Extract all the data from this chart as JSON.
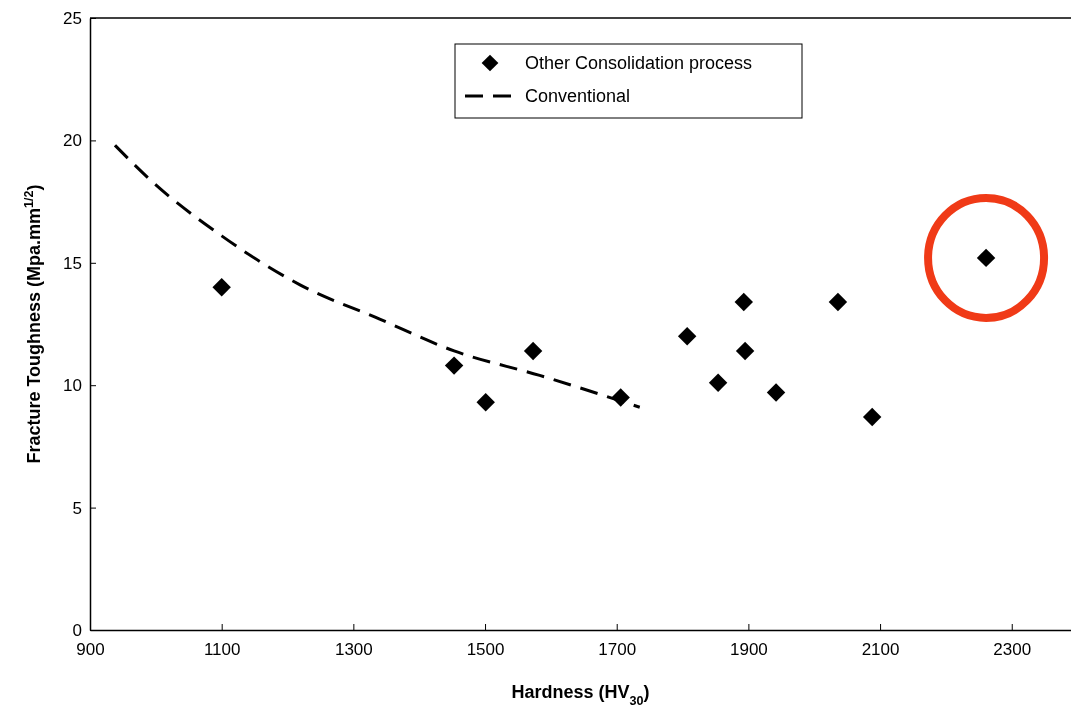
{
  "chart_data": {
    "type": "scatter",
    "xlabel": "Hardness (HV$_{30}$)",
    "ylabel": "Fracture Toughness (Mpa.mm$^{1/2}$)",
    "xlim": [
      900,
      2390
    ],
    "xticks": [
      900,
      1100,
      1300,
      1500,
      1700,
      1900,
      2100,
      2300
    ],
    "ylim": [
      0,
      25
    ],
    "yticks": [
      0,
      5,
      10,
      15,
      20,
      25
    ],
    "grid": false,
    "legend": "top",
    "series": [
      {
        "name": "Other Consolidation process",
        "marker": "diamond",
        "color": "#000000",
        "x": [
          1100,
          1453,
          1501,
          1573,
          1706,
          1807,
          1854,
          1893,
          1895,
          1942,
          2036,
          2088,
          2261
        ],
        "values": [
          14.0,
          10.8,
          9.3,
          11.4,
          9.5,
          12.0,
          10.1,
          13.4,
          11.4,
          9.7,
          13.4,
          8.7,
          15.2
        ]
      },
      {
        "name": "Conventional",
        "type": "line",
        "line_style": "dashed",
        "marker": "none",
        "color": "#000000",
        "x": [
          938,
          991,
          1100,
          1219,
          1340,
          1453,
          1583,
          1735
        ],
        "values": [
          19.8,
          18.4,
          16.1,
          14.1,
          12.7,
          11.4,
          10.4,
          9.1
        ]
      }
    ]
  }
}
